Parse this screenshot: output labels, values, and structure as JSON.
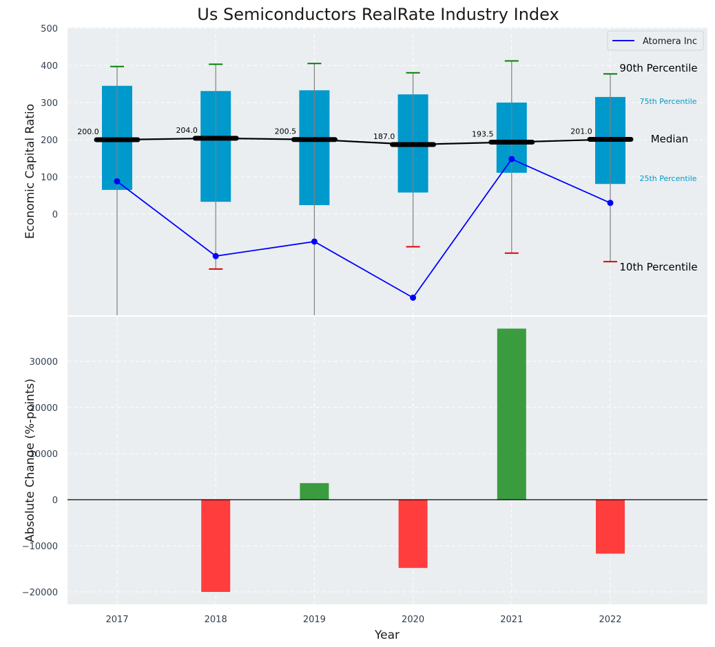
{
  "title": "Us Semiconductors RealRate Industry Index",
  "colors": {
    "panel_bg": "#eaeef0",
    "box": "#0099cc",
    "median": "#000000",
    "company": "#0000ff",
    "whisker_top": "#008000",
    "whisker_bottom": "#e00000",
    "positive_bar": "#3a9c3e",
    "negative_bar": "#ff3d3d",
    "whisker_line": "#808080"
  },
  "legend": {
    "label": "Atomera Inc",
    "position": "top-right"
  },
  "annotations": {
    "p90": "90th Percentile",
    "p75": "75th Percentile",
    "median": "Median",
    "p25": "25th Percentile",
    "p10": "10th Percentile"
  },
  "chart_data": [
    {
      "type": "box",
      "ylabel": "Economic Capital Ratio",
      "ylim": [
        -275,
        500
      ],
      "yticks": [
        0,
        100,
        200,
        300,
        400,
        500
      ],
      "categories": [
        "2017",
        "2018",
        "2019",
        "2020",
        "2021",
        "2022"
      ],
      "p90": [
        397,
        403,
        405,
        380,
        412,
        377
      ],
      "p75": [
        345,
        331,
        333,
        322,
        300,
        315
      ],
      "median": [
        200.0,
        204.0,
        200.5,
        187.0,
        193.5,
        201.0
      ],
      "median_labels": [
        "200.0",
        "204.0",
        "200.5",
        "187.0",
        "193.5",
        "201.0"
      ],
      "p25": [
        65,
        33,
        24,
        58,
        111,
        81
      ],
      "p10": [
        -275,
        -148,
        -275,
        -88,
        -105,
        -128
      ],
      "series": [
        {
          "name": "Atomera Inc",
          "values": [
            88,
            -113,
            -74,
            -225,
            148,
            30
          ]
        }
      ],
      "grid": true
    },
    {
      "type": "bar",
      "xlabel": "Year",
      "ylabel": "Absolute Change (%-points)",
      "ylim": [
        -22500,
        39500
      ],
      "yticks": [
        -20000,
        -10000,
        0,
        10000,
        20000,
        30000
      ],
      "ytick_labels": [
        "−20000",
        "−10000",
        "0",
        "10000",
        "20000",
        "30000"
      ],
      "categories": [
        "2017",
        "2018",
        "2019",
        "2020",
        "2021",
        "2022"
      ],
      "values": [
        0,
        -20000,
        3600,
        -14800,
        37100,
        -11700
      ],
      "grid": true
    }
  ]
}
